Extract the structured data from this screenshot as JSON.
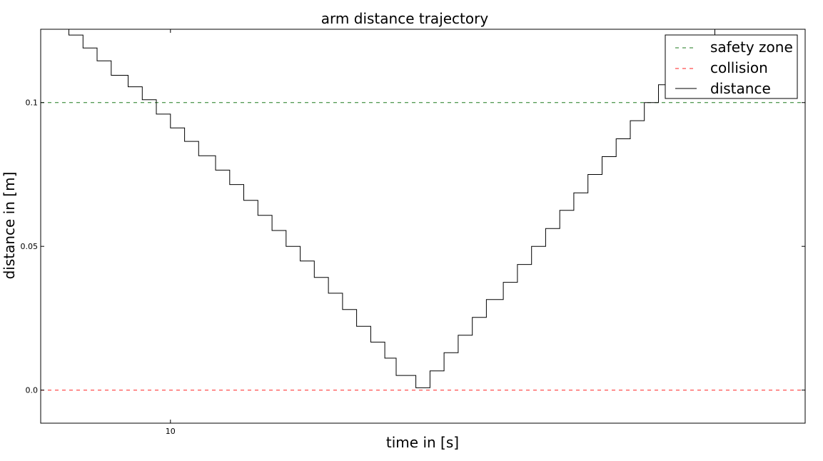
{
  "chart_data": {
    "type": "line",
    "title": "arm distance trajectory",
    "xlabel": "time in [s]",
    "ylabel": "distance in [m]",
    "xlim": [
      5.4,
      32.5
    ],
    "ylim": [
      -0.0115,
      0.1255
    ],
    "x_ticks": [
      {
        "value": 10,
        "label": "10"
      }
    ],
    "y_ticks": [
      {
        "value": 0.1,
        "label": "0.1"
      },
      {
        "value": 0.05,
        "label": "0.05"
      },
      {
        "value": 0.0,
        "label": "0.0"
      }
    ],
    "grid": false,
    "legend_position": "top-right",
    "series": [
      {
        "name": "safety zone",
        "style": "dashed",
        "color": "#1f7a1f",
        "x": [
          5.4,
          32.5
        ],
        "y": [
          0.1,
          0.1
        ]
      },
      {
        "name": "collision",
        "style": "dashed",
        "color": "#ff2020",
        "x": [
          5.4,
          32.5
        ],
        "y": [
          0.0,
          0.0
        ]
      },
      {
        "name": "distance",
        "style": "steps",
        "color": "#000000",
        "x": [
          5.9,
          6.4,
          6.9,
          7.4,
          7.9,
          8.5,
          9.0,
          9.5,
          10.0,
          10.5,
          11.0,
          11.6,
          12.1,
          12.6,
          13.1,
          13.6,
          14.1,
          14.6,
          15.1,
          15.6,
          16.1,
          16.6,
          17.1,
          17.6,
          18.0,
          18.7,
          19.2,
          19.7,
          20.2,
          20.7,
          21.2,
          21.8,
          22.3,
          22.8,
          23.3,
          23.8,
          24.3,
          24.8,
          25.3,
          25.8,
          26.3,
          26.8,
          27.3,
          27.9,
          28.3,
          28.8,
          29.3,
          29.8,
          30.4,
          30.9,
          31.3
        ],
        "y": [
          0.127,
          0.1235,
          0.119,
          0.1145,
          0.1095,
          0.1055,
          0.101,
          0.096,
          0.0912,
          0.0865,
          0.0815,
          0.0765,
          0.0715,
          0.066,
          0.0608,
          0.0555,
          0.05,
          0.0449,
          0.0392,
          0.0337,
          0.028,
          0.0222,
          0.0167,
          0.0111,
          0.0051,
          0.0008,
          0.0067,
          0.013,
          0.0191,
          0.0253,
          0.0315,
          0.0375,
          0.0437,
          0.05,
          0.0562,
          0.0625,
          0.0686,
          0.075,
          0.0812,
          0.0874,
          0.0937,
          0.1,
          0.1062,
          0.1124,
          0.1187,
          0.1235,
          0.1262,
          0.128,
          0.13,
          0.132,
          0.134
        ]
      }
    ]
  }
}
